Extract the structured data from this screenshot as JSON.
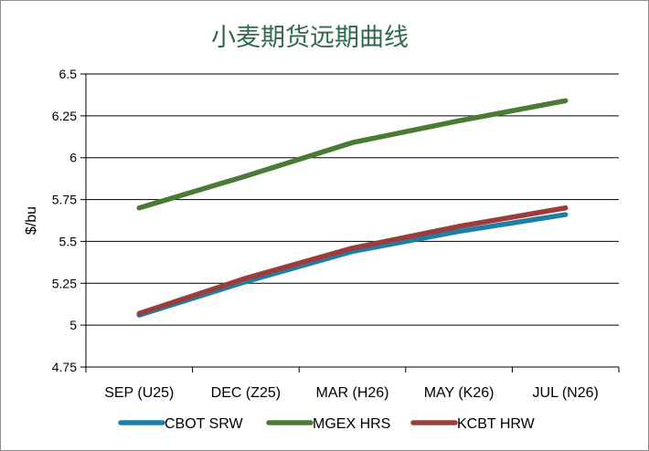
{
  "chart_data": {
    "type": "line",
    "title": "小麦期货远期曲线",
    "xlabel": "",
    "ylabel": "$/bu",
    "categories": [
      "SEP (U25)",
      "DEC (Z25)",
      "MAR (H26)",
      "MAY (K26)",
      "JUL (N26)"
    ],
    "ylim": [
      4.75,
      6.5
    ],
    "yticks": [
      "4.75",
      "5",
      "5.25",
      "5.5",
      "5.75",
      "6",
      "6.25",
      "6.5"
    ],
    "grid": "horizontal",
    "legend_position": "bottom",
    "series": [
      {
        "name": "CBOT SRW",
        "color": "#1f7ea8",
        "values": [
          5.06,
          5.26,
          5.44,
          5.56,
          5.66
        ]
      },
      {
        "name": "MGEX HRS",
        "color": "#4b7a36",
        "values": [
          5.7,
          5.89,
          6.09,
          6.22,
          6.34
        ]
      },
      {
        "name": "KCBT HRW",
        "color": "#9b3e3b",
        "values": [
          5.07,
          5.28,
          5.46,
          5.59,
          5.7
        ]
      }
    ]
  }
}
